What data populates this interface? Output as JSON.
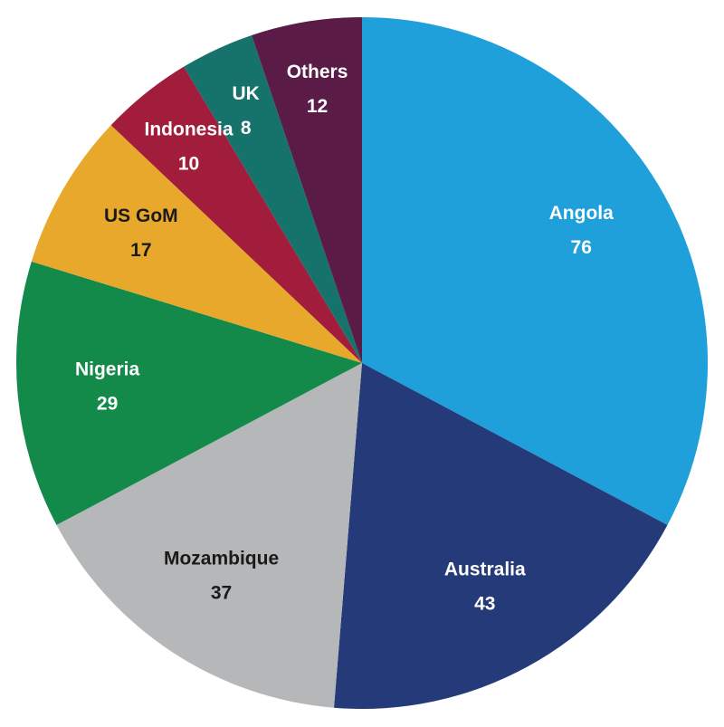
{
  "chart_data": {
    "type": "pie",
    "categories": [
      "Angola",
      "Australia",
      "Mozambique",
      "Nigeria",
      "US GoM",
      "Indonesia",
      "UK",
      "Others"
    ],
    "values": [
      76,
      43,
      37,
      29,
      17,
      10,
      8,
      12
    ],
    "colors": [
      "#1fa0db",
      "#253a78",
      "#b6b7b9",
      "#13894a",
      "#e7a82b",
      "#a21d3b",
      "#15736b",
      "#5a1b46"
    ]
  }
}
